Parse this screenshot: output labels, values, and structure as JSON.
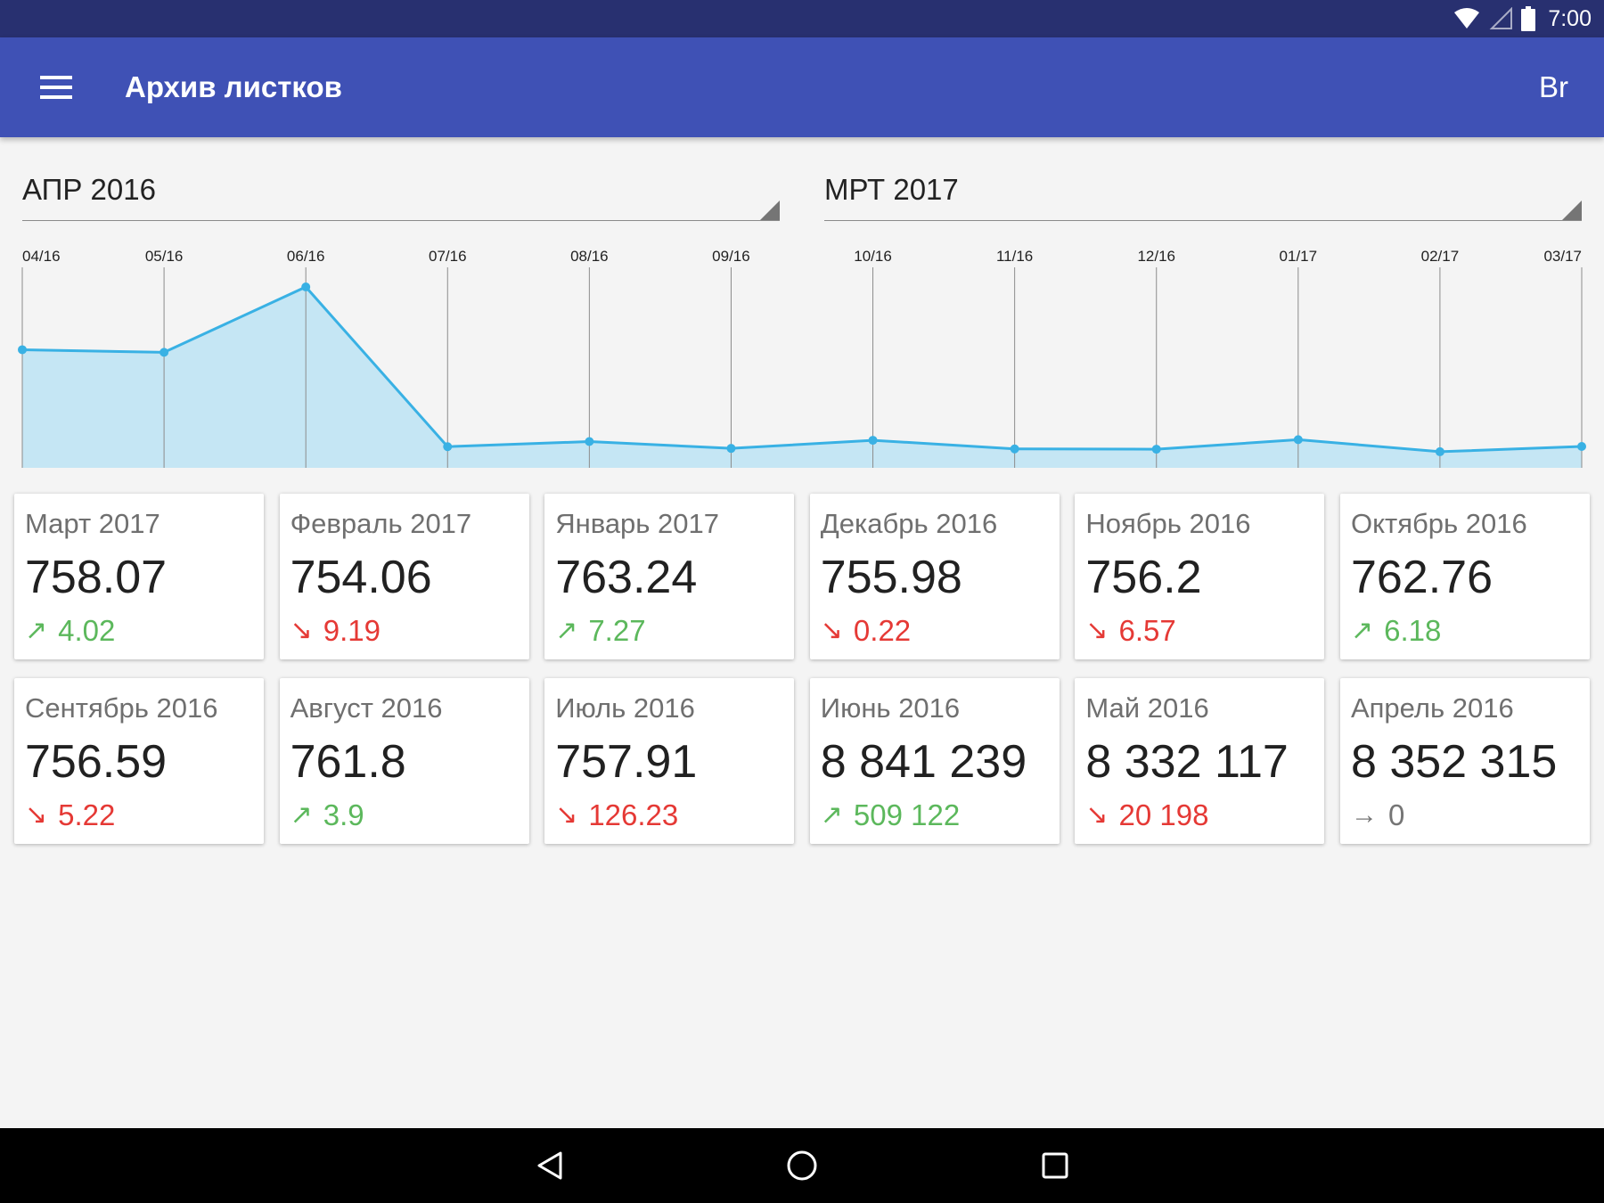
{
  "status_bar": {
    "time": "7:00",
    "icons": [
      "wifi-icon",
      "signal-icon",
      "battery-icon"
    ]
  },
  "app_bar": {
    "title": "Архив листков",
    "menu_icon": "menu-icon",
    "action_label": "Br"
  },
  "selectors": {
    "from": "АПР 2016",
    "to": "МРТ 2017"
  },
  "colors": {
    "primary": "#3f51b5",
    "status_bar": "#283070",
    "line": "#39b1e4",
    "fill": "#c5e6f4",
    "up": "#5cb85c",
    "down": "#e53935",
    "neutral": "#757575"
  },
  "chart_data": {
    "type": "area",
    "x": [
      "04/16",
      "05/16",
      "06/16",
      "07/16",
      "08/16",
      "09/16",
      "10/16",
      "11/16",
      "12/16",
      "01/17",
      "02/17",
      "03/17"
    ],
    "series": [
      {
        "values": [
          8352315,
          8332117,
          8841239,
          757.91,
          761.8,
          756.59,
          762.76,
          756.2,
          755.98,
          763.24,
          754.06,
          758.07
        ]
      }
    ],
    "title": "",
    "xlabel": "",
    "ylabel": "",
    "grid": "vertical"
  },
  "cards": [
    {
      "month": "Март 2017",
      "value": "758.07",
      "trend": "up",
      "arrow": "↗",
      "delta": "4.02"
    },
    {
      "month": "Февраль 2017",
      "value": "754.06",
      "trend": "down",
      "arrow": "↘",
      "delta": "9.19"
    },
    {
      "month": "Январь 2017",
      "value": "763.24",
      "trend": "up",
      "arrow": "↗",
      "delta": "7.27"
    },
    {
      "month": "Декабрь 2016",
      "value": "755.98",
      "trend": "down",
      "arrow": "↘",
      "delta": "0.22"
    },
    {
      "month": "Ноябрь 2016",
      "value": "756.2",
      "trend": "down",
      "arrow": "↘",
      "delta": "6.57"
    },
    {
      "month": "Октябрь 2016",
      "value": "762.76",
      "trend": "up",
      "arrow": "↗",
      "delta": "6.18"
    },
    {
      "month": "Сентябрь 2016",
      "value": "756.59",
      "trend": "down",
      "arrow": "↘",
      "delta": "5.22"
    },
    {
      "month": "Август 2016",
      "value": "761.8",
      "trend": "up",
      "arrow": "↗",
      "delta": "3.9"
    },
    {
      "month": "Июль 2016",
      "value": "757.91",
      "trend": "down",
      "arrow": "↘",
      "delta": "126.23"
    },
    {
      "month": "Июнь 2016",
      "value": "8 841 239",
      "trend": "up",
      "arrow": "↗",
      "delta": "509 122"
    },
    {
      "month": "Май 2016",
      "value": "8 332 117",
      "trend": "down",
      "arrow": "↘",
      "delta": "20 198"
    },
    {
      "month": "Апрель 2016",
      "value": "8 352 315",
      "trend": "flat",
      "arrow": "→",
      "delta": "0"
    }
  ],
  "nav_bar": {
    "icons": [
      "back-icon",
      "home-icon",
      "recents-icon"
    ]
  }
}
